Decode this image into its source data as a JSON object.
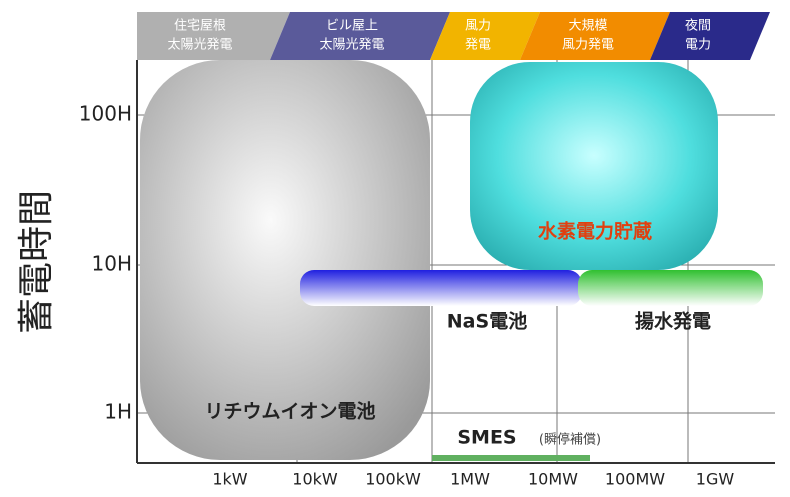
{
  "y_axis_title": "蓄電時間",
  "y_ticks": [
    "100H",
    "10H",
    "1H"
  ],
  "x_ticks": [
    "1kW",
    "10kW",
    "100kW",
    "1MW",
    "10MW",
    "100MW",
    "1GW"
  ],
  "bands": [
    {
      "line1": "住宅屋根",
      "line2": "太陽光発電"
    },
    {
      "line1": "ビル屋上",
      "line2": "太陽光発電"
    },
    {
      "line1": "風力",
      "line2": "発電"
    },
    {
      "line1": "大規模",
      "line2": "風力発電"
    },
    {
      "line1": "夜間",
      "line2": "電力"
    }
  ],
  "regions": {
    "lithium": "リチウムイオン電池",
    "hydrogen": "水素電力貯蔵",
    "nas": "NaS電池",
    "pumped": "揚水発電",
    "smes": "SMES",
    "smes_note": "(瞬停補償)"
  }
}
